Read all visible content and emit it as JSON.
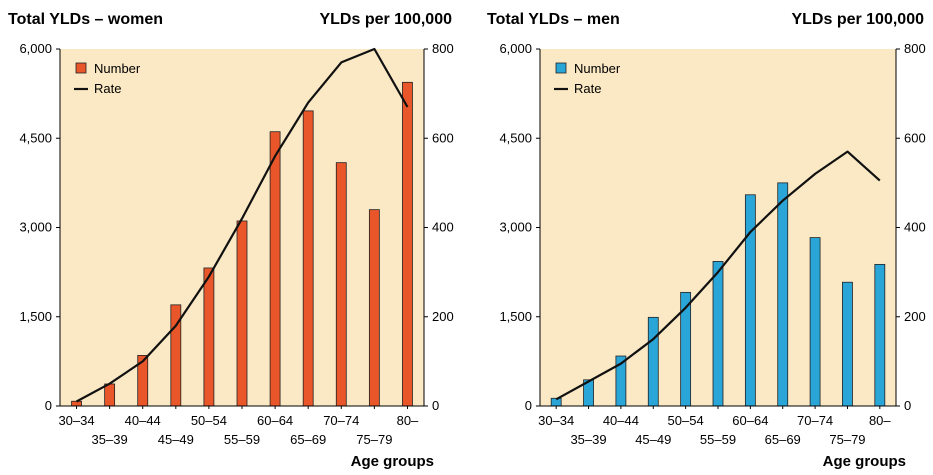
{
  "chart_data": [
    {
      "type": "bar",
      "title": "Total YLDs – women",
      "y2_title": "YLDs per 100,000",
      "xlabel": "Age groups",
      "categories": [
        "30–34",
        "35–39",
        "40–44",
        "45–49",
        "50–54",
        "55–59",
        "60–64",
        "65–69",
        "70–74",
        "75–79",
        "80–"
      ],
      "ylim": [
        0,
        6000
      ],
      "yticks": [
        "0",
        "1,500",
        "3,000",
        "4,500",
        "6,000"
      ],
      "y2lim": [
        0,
        800
      ],
      "y2ticks": [
        "0",
        "200",
        "400",
        "600",
        "800"
      ],
      "series": [
        {
          "name": "Number",
          "type": "bar",
          "axis": "left",
          "color": "#e8562a",
          "values": [
            80,
            370,
            850,
            1700,
            2320,
            3110,
            4610,
            4960,
            4090,
            3300,
            5440
          ]
        },
        {
          "name": "Rate",
          "type": "line",
          "axis": "right",
          "color": "#111111",
          "values": [
            10,
            50,
            100,
            180,
            290,
            420,
            560,
            680,
            770,
            800,
            670
          ]
        }
      ],
      "background": "#fbe9c5",
      "legend_position": "top-left"
    },
    {
      "type": "bar",
      "title": "Total YLDs – men",
      "y2_title": "YLDs per 100,000",
      "xlabel": "Age groups",
      "categories": [
        "30–34",
        "35–39",
        "40–44",
        "45–49",
        "50–54",
        "55–59",
        "60–64",
        "65–69",
        "70–74",
        "75–79",
        "80–"
      ],
      "ylim": [
        0,
        6000
      ],
      "yticks": [
        "0",
        "1,500",
        "3,000",
        "4,500",
        "6,000"
      ],
      "y2lim": [
        0,
        800
      ],
      "y2ticks": [
        "0",
        "200",
        "400",
        "600",
        "800"
      ],
      "series": [
        {
          "name": "Number",
          "type": "bar",
          "axis": "left",
          "color": "#2aa5d8",
          "values": [
            130,
            440,
            840,
            1490,
            1910,
            2430,
            3550,
            3750,
            2830,
            2080,
            2380
          ]
        },
        {
          "name": "Rate",
          "type": "line",
          "axis": "right",
          "color": "#111111",
          "values": [
            15,
            55,
            95,
            150,
            220,
            300,
            390,
            460,
            520,
            570,
            505
          ]
        }
      ],
      "background": "#fbe9c5",
      "legend_position": "top-left"
    }
  ]
}
